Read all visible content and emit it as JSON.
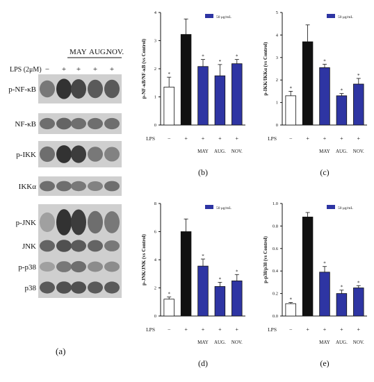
{
  "blot": {
    "header_groups": [
      "MAY",
      "AUG.",
      "NOV."
    ],
    "treatment_label": "LPS (2μM)",
    "lane_marks": [
      "−",
      "+",
      "+",
      "+",
      "+"
    ],
    "proteins": [
      "p-NF-κB",
      "NF-κB",
      "p-IKK",
      "IKKα",
      "p-JNK",
      "JNK",
      "p-p38",
      "p38"
    ],
    "panel_label": "(a)"
  },
  "colors": {
    "lps": "#111111",
    "treated": "#2e35a3",
    "control": "#ffffff"
  },
  "chart_data": [
    {
      "id": "b",
      "type": "bar",
      "panel_label": "(b)",
      "ylabel": "p-NF-κB/NF-κB (vs Control)",
      "ylim": [
        0,
        4
      ],
      "yticks": [
        "0",
        "1",
        "2",
        "3",
        "4"
      ],
      "legend": "50 μg/mL",
      "legend_position": "top-right",
      "xrow_label": "LPS",
      "lps": [
        "−",
        "+",
        "+",
        "+",
        "+"
      ],
      "categories": [
        "",
        "",
        "MAY",
        "AUG.",
        "NOV."
      ],
      "values": [
        1.35,
        3.22,
        2.08,
        1.75,
        2.18
      ],
      "errors": [
        0.35,
        0.55,
        0.25,
        0.4,
        0.15
      ],
      "significance": [
        "*",
        "",
        "*",
        "*",
        "*"
      ]
    },
    {
      "id": "c",
      "type": "bar",
      "panel_label": "(c)",
      "ylabel": "p-IKK/IKKα (vs Control)",
      "ylim": [
        0,
        5
      ],
      "yticks": [
        "0",
        "1",
        "2",
        "3",
        "4",
        "5"
      ],
      "legend": "50 μg/mL",
      "legend_position": "top-right",
      "xrow_label": "LPS",
      "lps": [
        "−",
        "+",
        "+",
        "+",
        "+"
      ],
      "categories": [
        "",
        "",
        "MAY",
        "AUG.",
        "NOV."
      ],
      "values": [
        1.3,
        3.7,
        2.55,
        1.3,
        1.82
      ],
      "errors": [
        0.2,
        0.75,
        0.15,
        0.1,
        0.25
      ],
      "significance": [
        "*",
        "",
        "*",
        "*",
        "*"
      ]
    },
    {
      "id": "d",
      "type": "bar",
      "panel_label": "(d)",
      "ylabel": "p-JNK/JNK (vs Control)",
      "ylim": [
        0,
        8
      ],
      "yticks": [
        "0",
        "2",
        "4",
        "6",
        "8"
      ],
      "legend": "50 μg/mL",
      "legend_position": "top-right",
      "xrow_label": "LPS",
      "lps": [
        "−",
        "+",
        "+",
        "+",
        "+"
      ],
      "categories": [
        "",
        "",
        "MAY",
        "AUG.",
        "NOV."
      ],
      "values": [
        1.2,
        6.0,
        3.55,
        2.1,
        2.5
      ],
      "errors": [
        0.15,
        0.9,
        0.5,
        0.3,
        0.45
      ],
      "significance": [
        "*",
        "",
        "*",
        "*",
        "*"
      ]
    },
    {
      "id": "e",
      "type": "bar",
      "panel_label": "(e)",
      "ylabel": "p-p38/p38 (vs Control)",
      "ylim": [
        0,
        1.0
      ],
      "yticks": [
        "0.0",
        "0.2",
        "0.4",
        "0.6",
        "0.8",
        "1.0"
      ],
      "legend": "50 μg/mL",
      "legend_position": "top-right",
      "xrow_label": "LPS",
      "lps": [
        "−",
        "+",
        "+",
        "+",
        "+"
      ],
      "categories": [
        "",
        "",
        "MAY",
        "AUG.",
        "NOV."
      ],
      "values": [
        0.11,
        0.88,
        0.39,
        0.2,
        0.25
      ],
      "errors": [
        0.01,
        0.04,
        0.05,
        0.03,
        0.02
      ],
      "significance": [
        "*",
        "",
        "*",
        "*",
        "*"
      ]
    }
  ]
}
